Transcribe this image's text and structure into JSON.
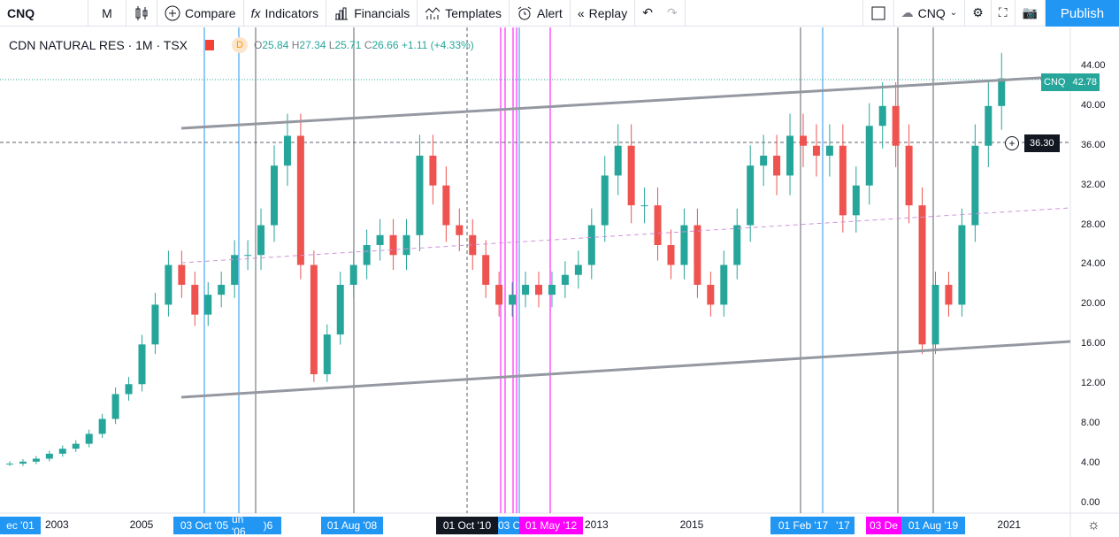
{
  "toolbar": {
    "symbol": "CNQ",
    "interval": "M",
    "compare": "Compare",
    "indicators": "Indicators",
    "financials": "Financials",
    "templates": "Templates",
    "alert": "Alert",
    "replay": "Replay",
    "compare_symbol": "CNQ",
    "publish": "Publish"
  },
  "legend": {
    "name": "CDN NATURAL RES · 1M · TSX",
    "badge": "D",
    "o": "25.84",
    "h": "27.34",
    "l": "25.71",
    "c": "26.66",
    "chg": "+1.11 (+4.33%)",
    "o_label": "O",
    "h_label": "H",
    "l_label": "L",
    "c_label": "C"
  },
  "price_labels": {
    "last_symbol": "CNQ",
    "last": "42.78",
    "crosshair": "36.30"
  },
  "x_tags": [
    "ec '01",
    "03 Oct '05",
    "un '06",
    ")6",
    "01 Aug '08",
    "01 Oct '10",
    "03 O",
    "01 May '12",
    "01 Feb '17",
    "'17",
    "03 De",
    "01 Aug '19"
  ],
  "colors": {
    "up": "#26a69a",
    "down": "#ef5350",
    "accent": "#2196f3",
    "magenta": "#ff00ff"
  },
  "chart_data": {
    "type": "candlestick",
    "title": "CDN NATURAL RES · 1M · TSX",
    "x_ticks": [
      "2003",
      "2005",
      "2015",
      "2021",
      "2013"
    ],
    "y_ticks": [
      "44.00",
      "40.00",
      "36.00",
      "32.00",
      "28.00",
      "24.00",
      "20.00",
      "16.00",
      "12.00",
      "8.00",
      "4.00",
      "0.00"
    ],
    "ylim": [
      0,
      44
    ],
    "start_year": 2002,
    "period": "quarter",
    "closes": [
      3.5,
      4,
      4.2,
      4,
      4,
      4.2,
      4.5,
      5,
      5.5,
      6,
      7,
      8.5,
      11,
      12,
      16,
      20,
      24,
      22,
      19,
      21,
      22,
      25,
      25,
      28,
      34,
      37,
      24,
      13,
      17,
      22,
      24,
      26,
      27,
      25,
      27,
      35,
      32,
      28,
      27,
      25,
      22,
      20,
      21,
      22,
      21,
      22,
      23,
      24,
      28,
      33,
      36,
      30,
      30,
      26,
      24,
      28,
      22,
      20,
      24,
      28,
      34,
      35,
      33,
      37,
      36,
      35,
      36,
      29,
      32,
      38,
      40,
      36,
      30,
      16,
      22,
      20,
      28,
      36,
      40,
      42.78
    ]
  }
}
